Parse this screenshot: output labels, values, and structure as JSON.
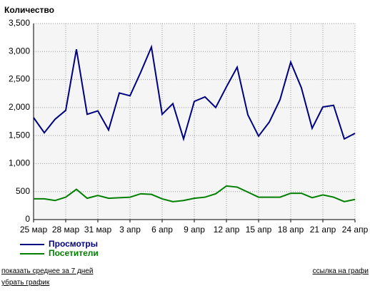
{
  "chart_data": {
    "type": "line",
    "title": "Количество",
    "categories": [
      "25 мар",
      null,
      null,
      "28 мар",
      null,
      null,
      "31 мар",
      null,
      null,
      "3 апр",
      null,
      null,
      "6 апр",
      null,
      null,
      "9 апр",
      null,
      null,
      "12 апр",
      null,
      null,
      "15 апр",
      null,
      null,
      "18 апр",
      null,
      null,
      "21 апр",
      null,
      null,
      "24 апр"
    ],
    "series": [
      {
        "name": "Просмотры",
        "color": "#000080",
        "values": [
          1820,
          1550,
          1790,
          1950,
          3040,
          1880,
          1940,
          1600,
          2260,
          2210,
          2630,
          3080,
          1880,
          2070,
          1440,
          2110,
          2190,
          2000,
          2370,
          2720,
          1870,
          1490,
          1740,
          2140,
          2810,
          2350,
          1630,
          2010,
          2040,
          1440,
          1540
        ]
      },
      {
        "name": "Посетители",
        "color": "#008000",
        "values": [
          370,
          370,
          340,
          400,
          540,
          380,
          430,
          380,
          390,
          400,
          460,
          450,
          370,
          320,
          340,
          380,
          400,
          460,
          600,
          580,
          490,
          400,
          400,
          400,
          470,
          470,
          390,
          440,
          400,
          320,
          360
        ]
      }
    ],
    "ylim": [
      0,
      3500
    ],
    "yticks": [
      0,
      500,
      {
        "value": 1000,
        "label": "1,000"
      },
      {
        "value": 1500,
        "label": "1,500"
      },
      {
        "value": 2000,
        "label": "2,000"
      },
      {
        "value": 2500,
        "label": "2,500"
      },
      {
        "value": 3000,
        "label": "3,000"
      },
      {
        "value": 3500,
        "label": "3,500"
      }
    ],
    "grid": true
  },
  "links": {
    "average": "показать среднее за 7 дней",
    "share": "ссылка на графи",
    "remove": "убрать график"
  }
}
